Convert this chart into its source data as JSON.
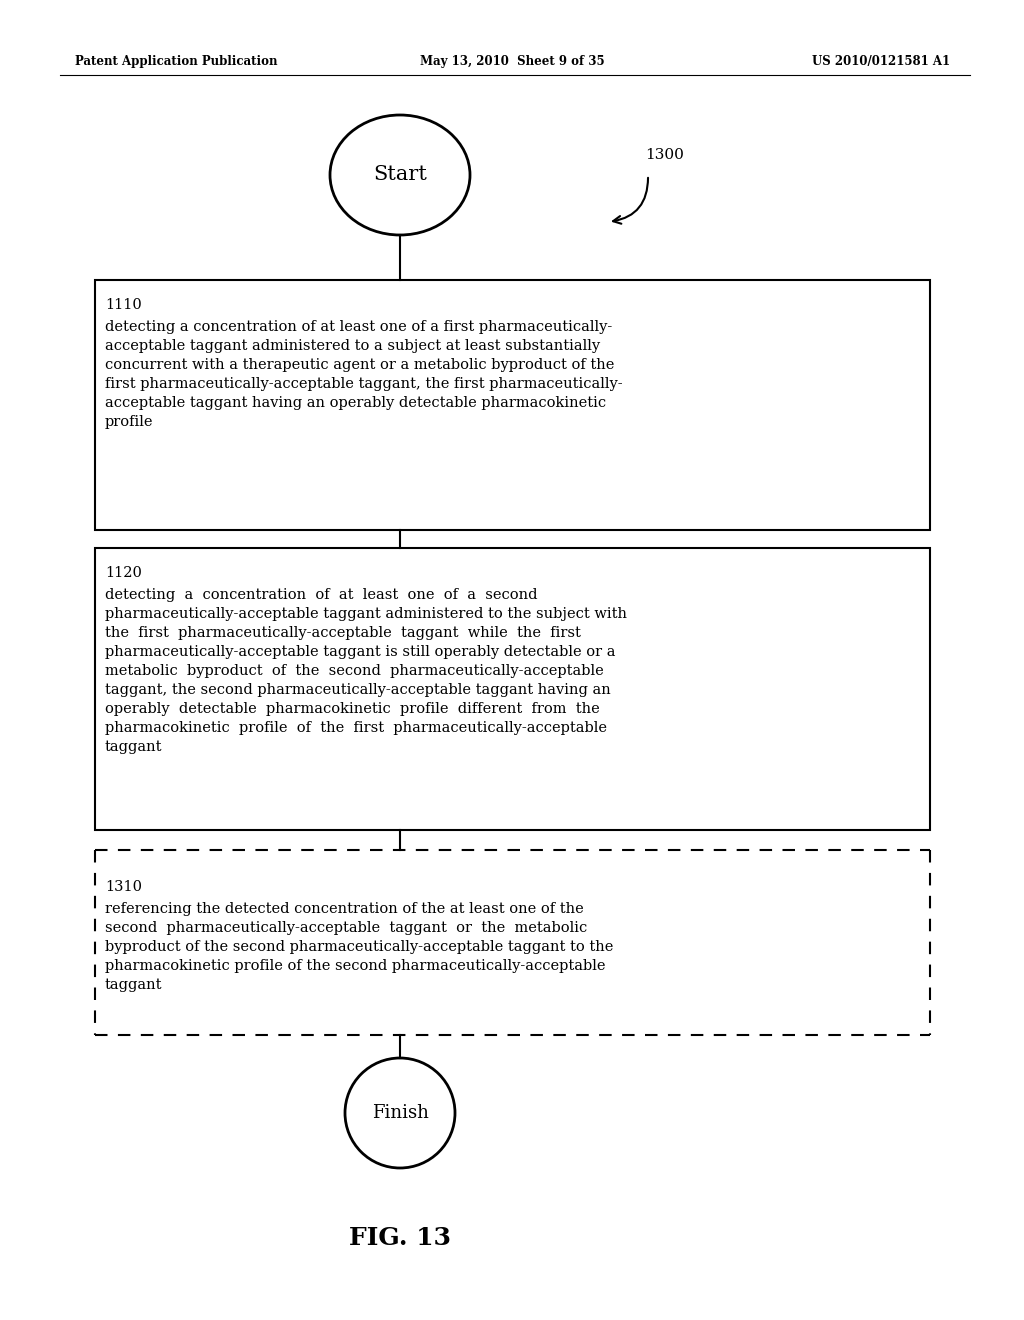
{
  "header_left": "Patent Application Publication",
  "header_center": "May 13, 2010  Sheet 9 of 35",
  "header_right": "US 2010/0121581 A1",
  "start_label": "Start",
  "finish_label": "Finish",
  "figure_label": "FIG. 13",
  "ref_number": "1300",
  "box1_id": "1110",
  "box1_text": "detecting a concentration of at least one of a first pharmaceutically-\nacceptable taggant administered to a subject at least substantially\nconcurrent with a therapeutic agent or a metabolic byproduct of the\nfirst pharmaceutically-acceptable taggant, the first pharmaceutically-\nacceptable taggant having an operably detectable pharmacokinetic\nprofile",
  "box2_id": "1120",
  "box2_text": "detecting  a  concentration  of  at  least  one  of  a  second\npharmaceutically-acceptable taggant administered to the subject with\nthe  first  pharmaceutically-acceptable  taggant  while  the  first\npharmaceutically-acceptable taggant is still operably detectable or a\nmetabolic  byproduct  of  the  second  pharmaceutically-acceptable\ntaggant, the second pharmaceutically-acceptable taggant having an\noperably  detectable  pharmacokinetic  profile  different  from  the\npharmacokinetic  profile  of  the  first  pharmaceutically-acceptable\ntaggant",
  "box3_id": "1310",
  "box3_text": "referencing the detected concentration of the at least one of the\nsecond  pharmaceutically-acceptable  taggant  or  the  metabolic\nbyproduct of the second pharmaceutically-acceptable taggant to the\npharmacokinetic profile of the second pharmaceutically-acceptable\ntaggant",
  "bg_color": "#ffffff",
  "text_color": "#000000",
  "line_color": "#000000"
}
